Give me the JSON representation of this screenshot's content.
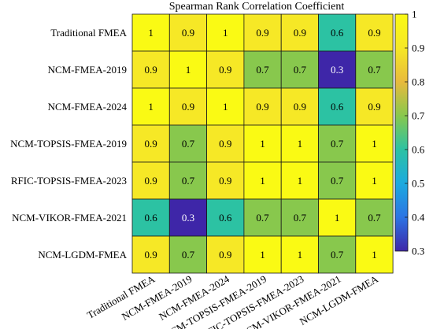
{
  "chart_data": {
    "type": "heatmap",
    "title": "Spearman Rank Correlation Coefficient",
    "categories": [
      "Traditional FMEA",
      "NCM-FMEA-2019",
      "NCM-FMEA-2024",
      "NCM-TOPSIS-FMEA-2019",
      "RFIC-TOPSIS-FMEA-2023",
      "NCM-VIKOR-FMEA-2021",
      "NCM-LGDM-FMEA"
    ],
    "values": [
      [
        1,
        0.9,
        1,
        0.9,
        0.9,
        0.6,
        0.9
      ],
      [
        0.9,
        1,
        0.9,
        0.7,
        0.7,
        0.3,
        0.7
      ],
      [
        1,
        0.9,
        1,
        0.9,
        0.9,
        0.6,
        0.9
      ],
      [
        0.9,
        0.7,
        0.9,
        1,
        1,
        0.7,
        1
      ],
      [
        0.9,
        0.7,
        0.9,
        1,
        1,
        0.7,
        1
      ],
      [
        0.6,
        0.3,
        0.6,
        0.7,
        0.7,
        1,
        0.7
      ],
      [
        0.9,
        0.7,
        0.9,
        1,
        1,
        0.7,
        1
      ]
    ],
    "colorbar": {
      "range": [
        0.3,
        1
      ],
      "ticks": [
        "0.3",
        "0.4",
        "0.5",
        "0.6",
        "0.7",
        "0.8",
        "0.9",
        "1"
      ],
      "colormap": "parula",
      "colors": [
        "#3e26a8",
        "#2c74e4",
        "#1caadf",
        "#2cc2a3",
        "#88c84d",
        "#e8ba3d",
        "#f6e826",
        "#fafa14"
      ]
    }
  }
}
